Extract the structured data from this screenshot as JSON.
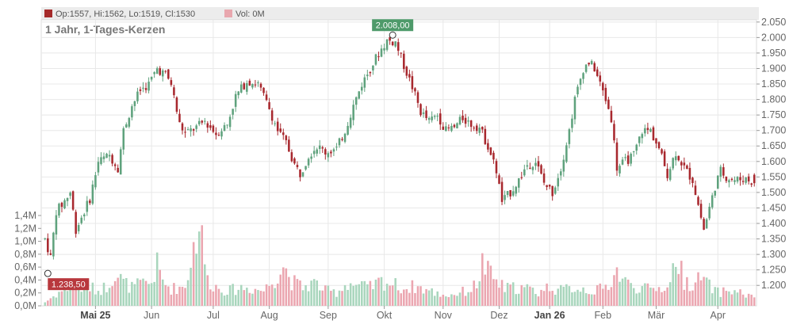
{
  "legend": {
    "ohlc_label": "Op:1557, Hi:1562, Lo:1519, Cl:1530",
    "vol_label": "Vol: 0M",
    "ohlc_color": "#a52a2a",
    "vol_color": "#e8a7ae"
  },
  "period_label": "1 Jahr, 1-Tages-Kerzen",
  "colors": {
    "up": "#5fa27d",
    "down": "#a8282e",
    "vol_up": "#a9d6bd",
    "vol_down": "#eba6b0",
    "grid": "#e8e8e8",
    "axis_text": "#666666"
  },
  "chart_data": {
    "type": "candlestick",
    "title": "1 Jahr, 1-Tages-Kerzen",
    "price_axis": {
      "ylim": [
        1175,
        2070
      ],
      "ticks": [
        2050,
        2000,
        1950,
        1900,
        1850,
        1800,
        1750,
        1700,
        1650,
        1600,
        1550,
        1500,
        1450,
        1400,
        1350,
        1300,
        1250,
        1200
      ],
      "tick_labels": [
        "2.050",
        "2.000",
        "1.950",
        "1.900",
        "1.850",
        "1.800",
        "1.750",
        "1.700",
        "1.650",
        "1.600",
        "1.550",
        "1.500",
        "1.450",
        "1.400",
        "1.350",
        "1.300",
        "1.250",
        "1.200"
      ],
      "position": "right"
    },
    "volume_axis": {
      "ylim": [
        0,
        1.4
      ],
      "ticks": [
        0,
        0.2,
        0.4,
        0.6,
        0.8,
        1.0,
        1.2,
        1.4
      ],
      "tick_labels": [
        "0,0M",
        "0,2M",
        "0,4M",
        "0,6M",
        "0,8M",
        "1,0M",
        "1,2M",
        "1,4M"
      ],
      "unit": "M",
      "position": "left"
    },
    "x_axis": {
      "start_date": "2025-04-07",
      "days": 254,
      "months": [
        {
          "label": "Mai 25",
          "day": 18,
          "bold": true
        },
        {
          "label": "Jun",
          "day": 38,
          "bold": false
        },
        {
          "label": "Jul",
          "day": 60,
          "bold": false
        },
        {
          "label": "Aug",
          "day": 80,
          "bold": false
        },
        {
          "label": "Sep",
          "day": 101,
          "bold": false
        },
        {
          "label": "Okt",
          "day": 121,
          "bold": false
        },
        {
          "label": "Nov",
          "day": 142,
          "bold": false
        },
        {
          "label": "Dez",
          "day": 162,
          "bold": false
        },
        {
          "label": "Jan 26",
          "day": 180,
          "bold": true
        },
        {
          "label": "Feb",
          "day": 199,
          "bold": false
        },
        {
          "label": "Mär",
          "day": 218,
          "bold": false
        },
        {
          "label": "Apr",
          "day": 240,
          "bold": false
        }
      ]
    },
    "grid": true,
    "annotations": [
      {
        "label": "2.008,00",
        "kind": "high",
        "day": 124,
        "value": 2008
      },
      {
        "label": "1.238,50",
        "kind": "low",
        "day": 1,
        "value": 1238.5
      }
    ],
    "last_candle": {
      "open": 1557,
      "high": 1562,
      "low": 1519,
      "close": 1530,
      "volume": 0
    },
    "close_anchors": [
      [
        0,
        1350
      ],
      [
        2,
        1290
      ],
      [
        4,
        1440
      ],
      [
        6,
        1460
      ],
      [
        9,
        1500
      ],
      [
        11,
        1380
      ],
      [
        14,
        1440
      ],
      [
        16,
        1480
      ],
      [
        19,
        1600
      ],
      [
        23,
        1620
      ],
      [
        26,
        1580
      ],
      [
        28,
        1700
      ],
      [
        31,
        1780
      ],
      [
        34,
        1830
      ],
      [
        37,
        1850
      ],
      [
        40,
        1900
      ],
      [
        43,
        1880
      ],
      [
        45,
        1850
      ],
      [
        48,
        1720
      ],
      [
        50,
        1690
      ],
      [
        54,
        1710
      ],
      [
        57,
        1730
      ],
      [
        61,
        1690
      ],
      [
        65,
        1720
      ],
      [
        68,
        1810
      ],
      [
        72,
        1860
      ],
      [
        76,
        1850
      ],
      [
        80,
        1770
      ],
      [
        83,
        1700
      ],
      [
        86,
        1660
      ],
      [
        89,
        1590
      ],
      [
        91,
        1560
      ],
      [
        94,
        1620
      ],
      [
        97,
        1650
      ],
      [
        100,
        1630
      ],
      [
        104,
        1640
      ],
      [
        107,
        1700
      ],
      [
        110,
        1780
      ],
      [
        113,
        1850
      ],
      [
        116,
        1900
      ],
      [
        119,
        1950
      ],
      [
        122,
        1990
      ],
      [
        125,
        1985
      ],
      [
        128,
        1910
      ],
      [
        131,
        1840
      ],
      [
        134,
        1760
      ],
      [
        137,
        1730
      ],
      [
        140,
        1750
      ],
      [
        143,
        1700
      ],
      [
        146,
        1710
      ],
      [
        149,
        1740
      ],
      [
        152,
        1720
      ],
      [
        155,
        1710
      ],
      [
        158,
        1650
      ],
      [
        161,
        1570
      ],
      [
        163,
        1470
      ],
      [
        166,
        1500
      ],
      [
        169,
        1540
      ],
      [
        172,
        1590
      ],
      [
        175,
        1600
      ],
      [
        178,
        1530
      ],
      [
        181,
        1500
      ],
      [
        184,
        1580
      ],
      [
        187,
        1700
      ],
      [
        189,
        1800
      ],
      [
        192,
        1900
      ],
      [
        194,
        1920
      ],
      [
        196,
        1900
      ],
      [
        198,
        1850
      ],
      [
        200,
        1800
      ],
      [
        202,
        1740
      ],
      [
        204,
        1580
      ],
      [
        207,
        1600
      ],
      [
        210,
        1620
      ],
      [
        213,
        1700
      ],
      [
        216,
        1700
      ],
      [
        219,
        1640
      ],
      [
        222,
        1560
      ],
      [
        225,
        1630
      ],
      [
        228,
        1580
      ],
      [
        231,
        1540
      ],
      [
        233,
        1460
      ],
      [
        235,
        1380
      ],
      [
        237,
        1450
      ],
      [
        239,
        1520
      ],
      [
        241,
        1570
      ],
      [
        243,
        1550
      ],
      [
        246,
        1540
      ],
      [
        250,
        1545
      ],
      [
        253,
        1530
      ]
    ],
    "volume_anchors": [
      [
        0,
        0.06
      ],
      [
        5,
        0.22
      ],
      [
        8,
        0.3
      ],
      [
        12,
        0.28
      ],
      [
        16,
        0.3
      ],
      [
        19,
        0.25
      ],
      [
        22,
        0.32
      ],
      [
        25,
        0.55
      ],
      [
        28,
        0.38
      ],
      [
        31,
        0.3
      ],
      [
        34,
        0.35
      ],
      [
        38,
        0.38
      ],
      [
        40,
        0.65
      ],
      [
        42,
        0.4
      ],
      [
        45,
        0.28
      ],
      [
        50,
        0.32
      ],
      [
        55,
        1.38
      ],
      [
        58,
        0.42
      ],
      [
        62,
        0.28
      ],
      [
        66,
        0.25
      ],
      [
        70,
        0.3
      ],
      [
        74,
        0.28
      ],
      [
        78,
        0.25
      ],
      [
        82,
        0.45
      ],
      [
        85,
        0.67
      ],
      [
        88,
        0.4
      ],
      [
        92,
        0.3
      ],
      [
        96,
        0.38
      ],
      [
        100,
        0.25
      ],
      [
        104,
        0.22
      ],
      [
        108,
        0.38
      ],
      [
        112,
        0.32
      ],
      [
        116,
        0.3
      ],
      [
        120,
        0.4
      ],
      [
        124,
        0.36
      ],
      [
        128,
        0.28
      ],
      [
        132,
        0.32
      ],
      [
        136,
        0.26
      ],
      [
        140,
        0.2
      ],
      [
        144,
        0.17
      ],
      [
        148,
        0.22
      ],
      [
        151,
        0.25
      ],
      [
        154,
        0.35
      ],
      [
        156,
        0.69
      ],
      [
        158,
        0.55
      ],
      [
        161,
        0.4
      ],
      [
        164,
        0.28
      ],
      [
        168,
        0.3
      ],
      [
        172,
        0.28
      ],
      [
        176,
        0.22
      ],
      [
        180,
        0.32
      ],
      [
        184,
        0.25
      ],
      [
        188,
        0.3
      ],
      [
        192,
        0.28
      ],
      [
        196,
        0.24
      ],
      [
        200,
        0.3
      ],
      [
        204,
        0.56
      ],
      [
        208,
        0.35
      ],
      [
        212,
        0.3
      ],
      [
        216,
        0.26
      ],
      [
        220,
        0.3
      ],
      [
        223,
        0.35
      ],
      [
        225,
        0.85
      ],
      [
        228,
        0.4
      ],
      [
        232,
        0.36
      ],
      [
        234,
        0.47
      ],
      [
        237,
        0.32
      ],
      [
        240,
        0.22
      ],
      [
        244,
        0.25
      ],
      [
        248,
        0.22
      ],
      [
        253,
        0.12
      ]
    ]
  }
}
